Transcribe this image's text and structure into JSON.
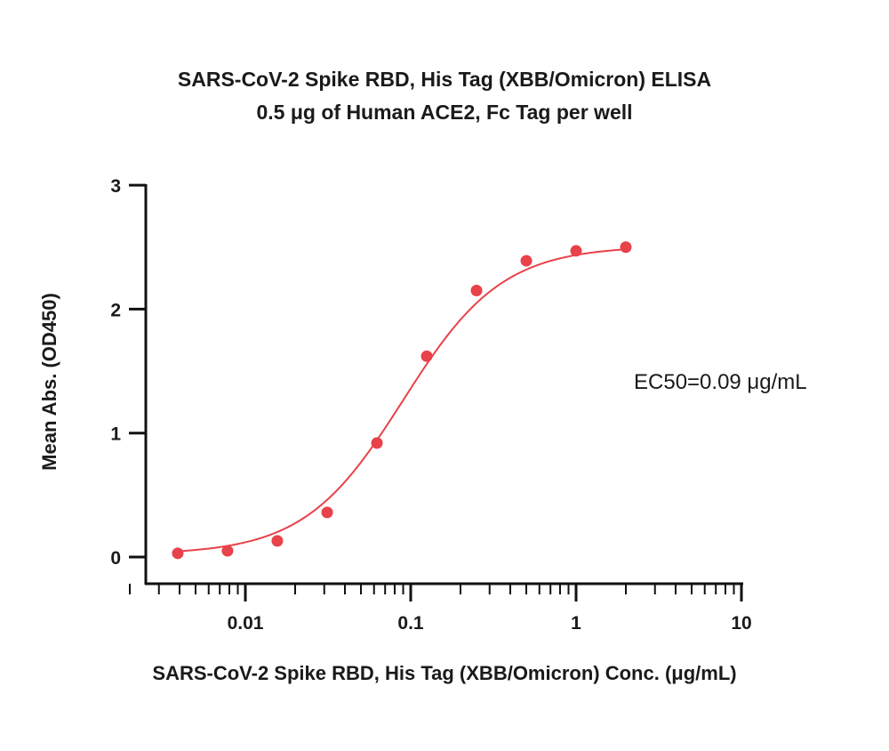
{
  "chart_data": {
    "type": "scatter",
    "title": "SARS-CoV-2 Spike RBD, His Tag (XBB/Omicron) ELISA",
    "subtitle": "0.5 μg of Human ACE2, Fc Tag per well",
    "xlabel": "SARS-CoV-2 Spike RBD, His Tag (XBB/Omicron) Conc. (μg/mL)",
    "ylabel": "Mean Abs. (OD450)",
    "x_scale": "log",
    "xlim": [
      0.001,
      10
    ],
    "ylim": [
      0,
      3
    ],
    "x_ticks": [
      {
        "value": 0.01,
        "label": "0.01"
      },
      {
        "value": 0.1,
        "label": "0.1"
      },
      {
        "value": 1,
        "label": "1"
      },
      {
        "value": 10,
        "label": "10"
      }
    ],
    "y_ticks": [
      {
        "value": 0,
        "label": "0"
      },
      {
        "value": 1,
        "label": "1"
      },
      {
        "value": 2,
        "label": "2"
      },
      {
        "value": 3,
        "label": "3"
      }
    ],
    "series": [
      {
        "x": [
          0.0039,
          0.0078,
          0.0156,
          0.03125,
          0.0625,
          0.125,
          0.25,
          0.5,
          1,
          2
        ],
        "y": [
          0.03,
          0.05,
          0.13,
          0.36,
          0.92,
          1.62,
          2.15,
          2.39,
          2.47,
          2.5
        ],
        "fit": "4PL sigmoid"
      }
    ],
    "annotation": "EC50=0.09 μg/mL",
    "color": "#e8424a",
    "grid": false,
    "legend": "none"
  }
}
